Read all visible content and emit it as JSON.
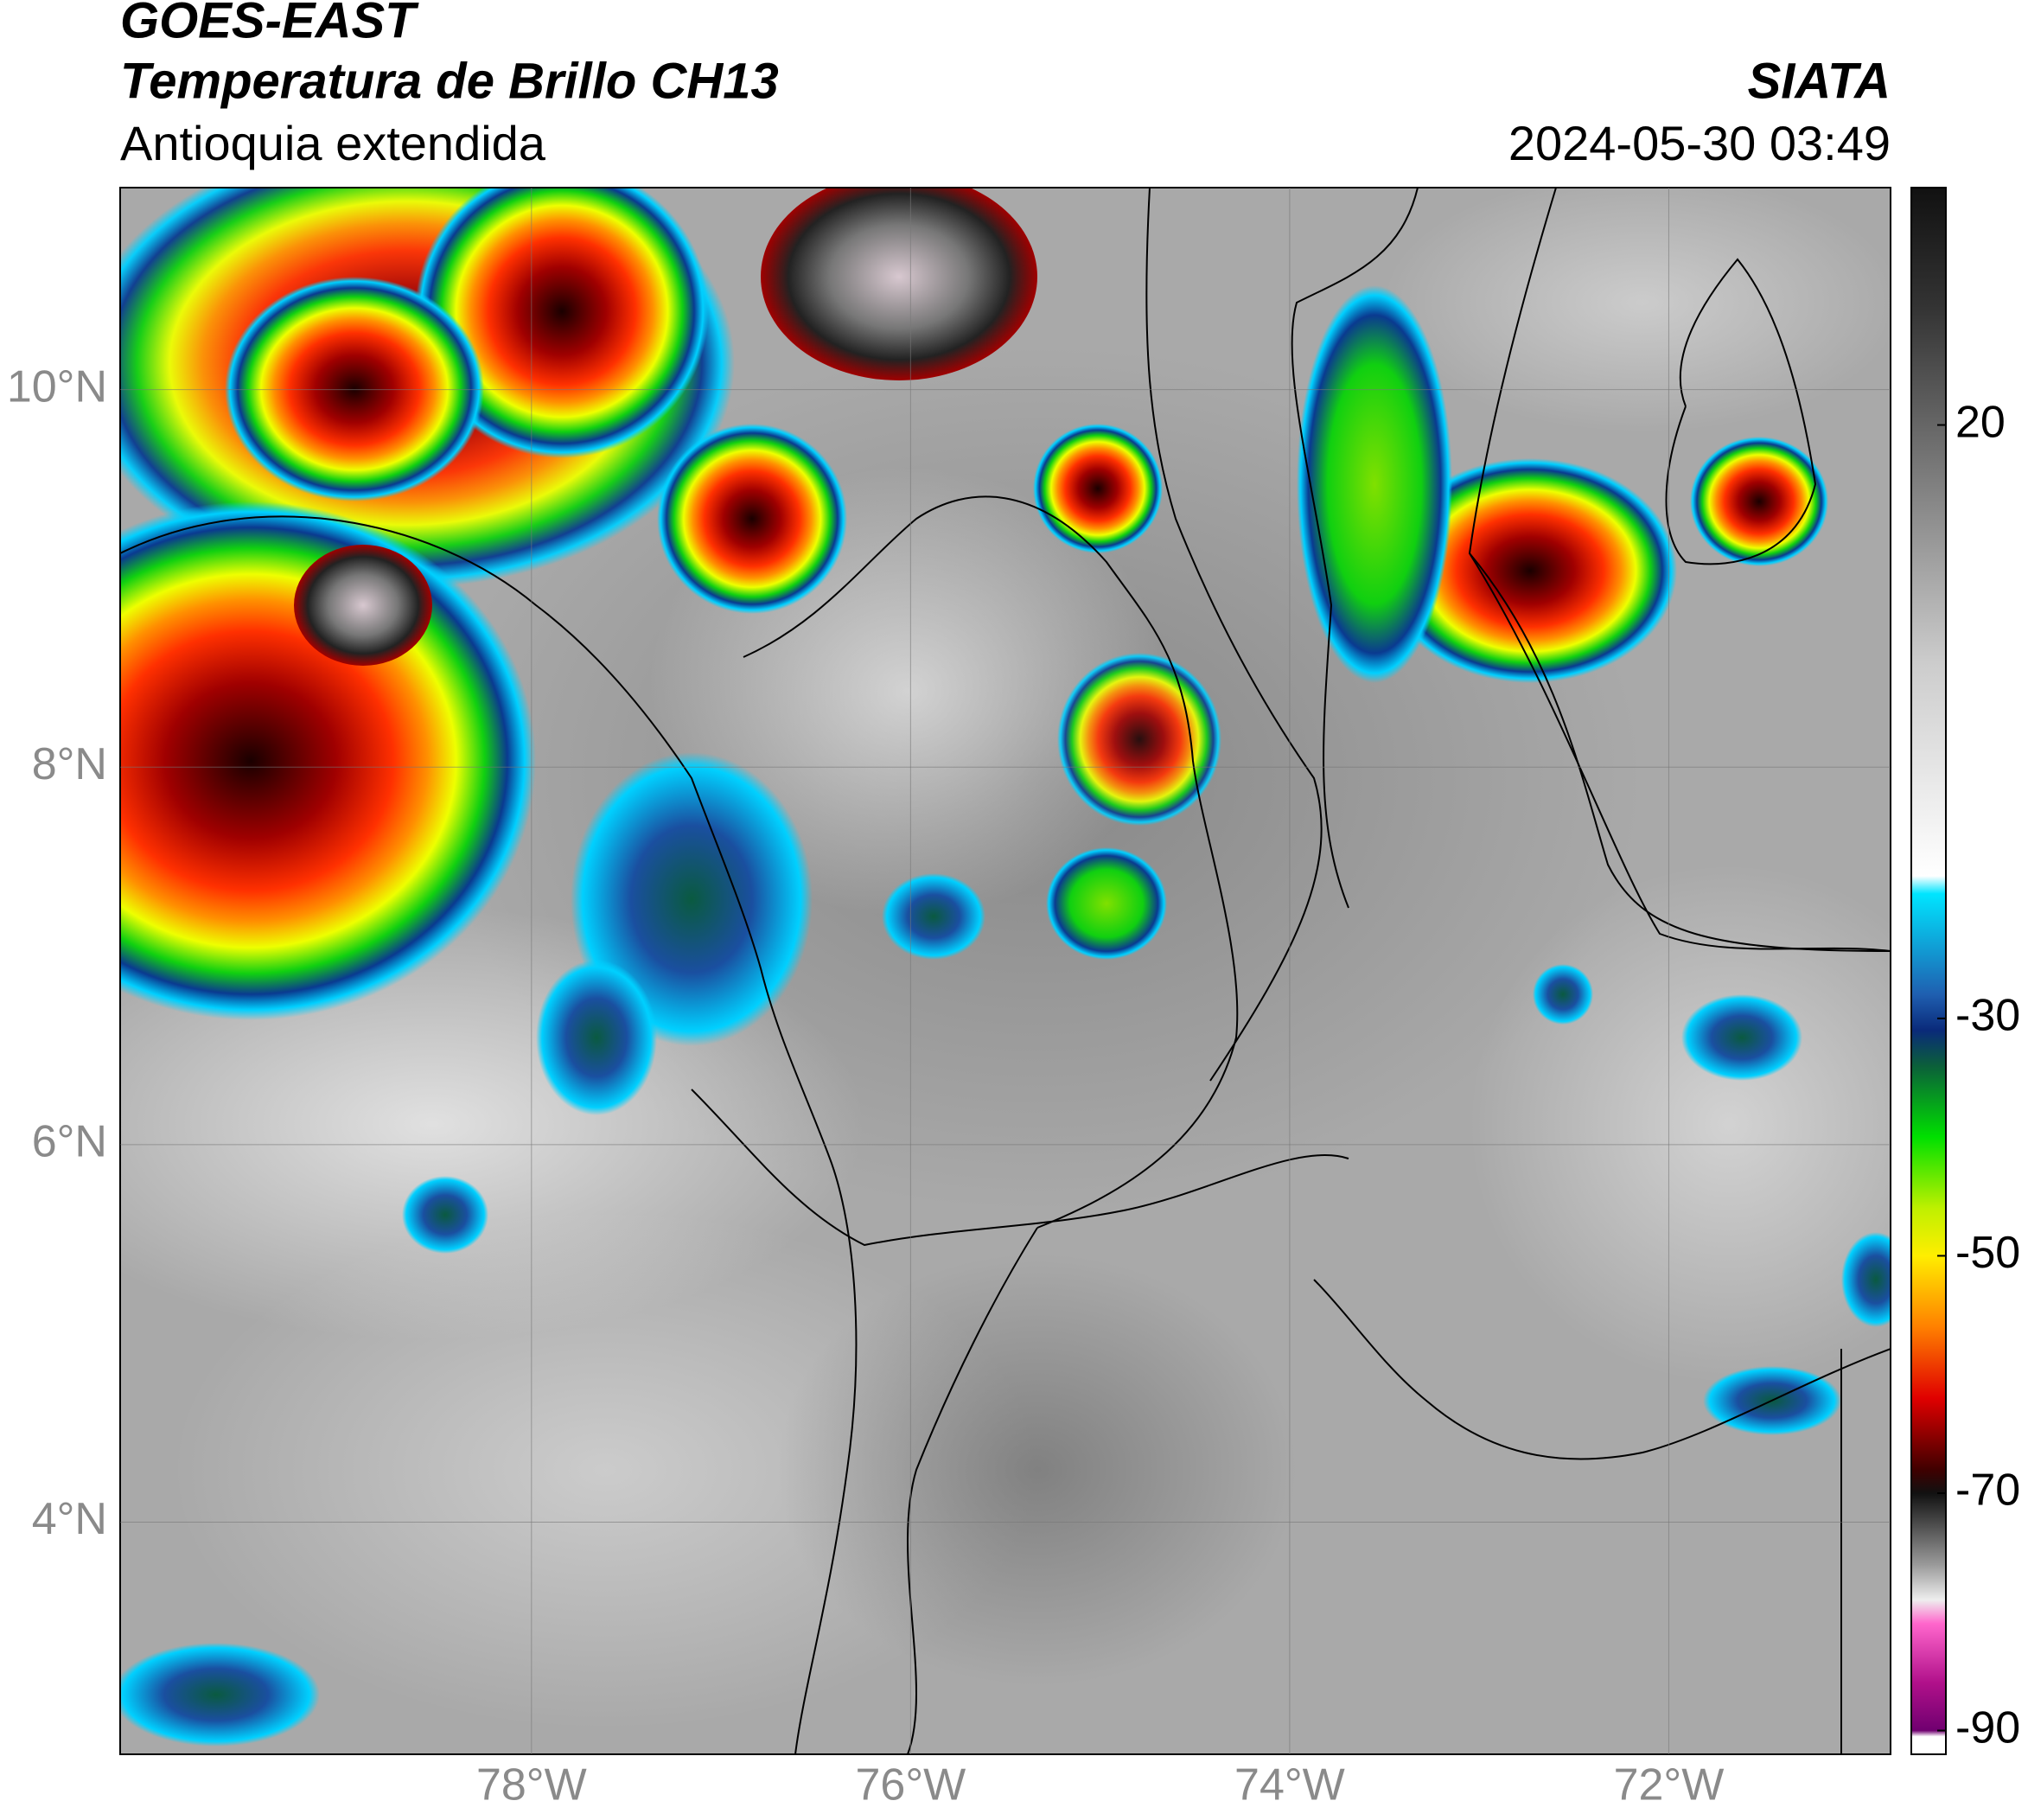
{
  "map": {
    "title": "GOES-EAST",
    "subtitle": "Temperatura de Brillo CH13",
    "region": "Antioquia extendida",
    "source": "SIATA",
    "timestamp": "2024-05-30 03:49",
    "xlim": [
      -80.17,
      -70.83
    ],
    "ylim": [
      2.77,
      11.07
    ],
    "xticks": [
      {
        "value": -78,
        "label": "78°W"
      },
      {
        "value": -76,
        "label": "76°W"
      },
      {
        "value": -74,
        "label": "74°W"
      },
      {
        "value": -72,
        "label": "72°W"
      }
    ],
    "yticks": [
      {
        "value": 4,
        "label": "4°N"
      },
      {
        "value": 6,
        "label": "6°N"
      },
      {
        "value": 8,
        "label": "8°N"
      },
      {
        "value": 10,
        "label": "10°N"
      }
    ],
    "grid": true,
    "colorbar": {
      "clim": [
        -92,
        40
      ],
      "ticks": [
        20,
        -30,
        -50,
        -70,
        -90
      ],
      "stops": [
        {
          "value": 40,
          "color": "#111111"
        },
        {
          "value": 30,
          "color": "#333333"
        },
        {
          "value": 20,
          "color": "#666666"
        },
        {
          "value": 10,
          "color": "#999999"
        },
        {
          "value": 0,
          "color": "#cccccc"
        },
        {
          "value": -18,
          "color": "#ffffff"
        },
        {
          "value": -19.5,
          "color": "#00e5ff"
        },
        {
          "value": -28,
          "color": "#1f5fb0"
        },
        {
          "value": -31,
          "color": "#0a2a7a"
        },
        {
          "value": -34,
          "color": "#0b5f3a"
        },
        {
          "value": -40,
          "color": "#00e000"
        },
        {
          "value": -46,
          "color": "#bff000"
        },
        {
          "value": -50,
          "color": "#ffee00"
        },
        {
          "value": -56,
          "color": "#ff8000"
        },
        {
          "value": -62,
          "color": "#e00000"
        },
        {
          "value": -68,
          "color": "#400000"
        },
        {
          "value": -70,
          "color": "#111111"
        },
        {
          "value": -76,
          "color": "#999999"
        },
        {
          "value": -79,
          "color": "#eeeeee"
        },
        {
          "value": -81,
          "color": "#ff66cc"
        },
        {
          "value": -86,
          "color": "#b0108a"
        },
        {
          "value": -90,
          "color": "#700070"
        },
        {
          "value": -90.5,
          "color": "#ffffff"
        },
        {
          "value": -92,
          "color": "#ffffff"
        }
      ]
    }
  }
}
